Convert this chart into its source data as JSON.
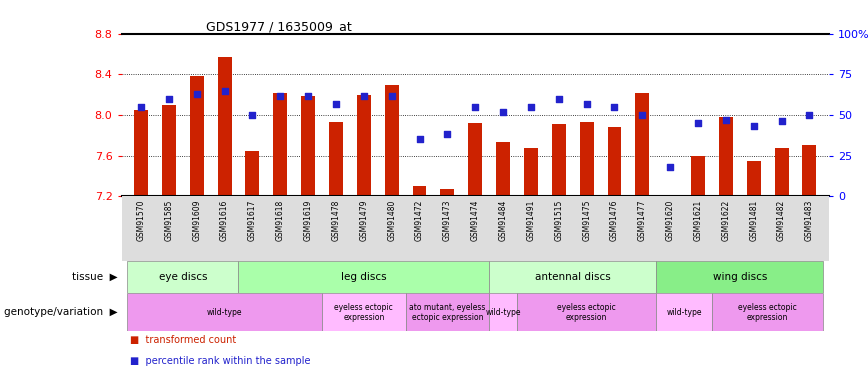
{
  "title": "GDS1977 / 1635009_at",
  "samples": [
    "GSM91570",
    "GSM91585",
    "GSM91609",
    "GSM91616",
    "GSM91617",
    "GSM91618",
    "GSM91619",
    "GSM91478",
    "GSM91479",
    "GSM91480",
    "GSM91472",
    "GSM91473",
    "GSM91474",
    "GSM91484",
    "GSM91491",
    "GSM91515",
    "GSM91475",
    "GSM91476",
    "GSM91477",
    "GSM91620",
    "GSM91621",
    "GSM91622",
    "GSM91481",
    "GSM91482",
    "GSM91483"
  ],
  "bar_values": [
    8.05,
    8.1,
    8.38,
    8.57,
    7.65,
    8.22,
    8.19,
    7.93,
    8.2,
    8.3,
    7.3,
    7.27,
    7.92,
    7.73,
    7.68,
    7.91,
    7.93,
    7.88,
    8.22,
    7.2,
    7.6,
    7.98,
    7.55,
    7.68,
    7.7
  ],
  "dot_values": [
    55,
    60,
    63,
    65,
    50,
    62,
    62,
    57,
    62,
    62,
    35,
    38,
    55,
    52,
    55,
    60,
    57,
    55,
    50,
    18,
    45,
    47,
    43,
    46,
    50
  ],
  "ylim": [
    7.2,
    8.8
  ],
  "yticks": [
    7.2,
    7.6,
    8.0,
    8.4,
    8.8
  ],
  "right_yticks": [
    0,
    25,
    50,
    75,
    100
  ],
  "bar_color": "#cc2200",
  "dot_color": "#2222cc",
  "tissue_groups": [
    {
      "label": "eye discs",
      "start": 0,
      "end": 3,
      "color": "#ccffcc"
    },
    {
      "label": "leg discs",
      "start": 4,
      "end": 12,
      "color": "#aaffaa"
    },
    {
      "label": "antennal discs",
      "start": 13,
      "end": 18,
      "color": "#ccffcc"
    },
    {
      "label": "wing discs",
      "start": 19,
      "end": 24,
      "color": "#88ee88"
    }
  ],
  "genotype_groups": [
    {
      "label": "wild-type",
      "start": 0,
      "end": 6,
      "color": "#ee99ee"
    },
    {
      "label": "eyeless ectopic\nexpression",
      "start": 7,
      "end": 9,
      "color": "#ffbbff"
    },
    {
      "label": "ato mutant, eyeless\nectopic expression",
      "start": 10,
      "end": 12,
      "color": "#ee99ee"
    },
    {
      "label": "wild-type",
      "start": 13,
      "end": 13,
      "color": "#ffbbff"
    },
    {
      "label": "eyeless ectopic\nexpression",
      "start": 14,
      "end": 18,
      "color": "#ee99ee"
    },
    {
      "label": "wild-type",
      "start": 19,
      "end": 20,
      "color": "#ffbbff"
    },
    {
      "label": "eyeless ectopic\nexpression",
      "start": 21,
      "end": 24,
      "color": "#ee99ee"
    }
  ],
  "tissue_label": "tissue",
  "genotype_label": "genotype/variation",
  "legend_items": [
    {
      "label": "transformed count",
      "color": "#cc2200"
    },
    {
      "label": "percentile rank within the sample",
      "color": "#2222cc"
    }
  ],
  "xticklabel_bg": "#dddddd"
}
